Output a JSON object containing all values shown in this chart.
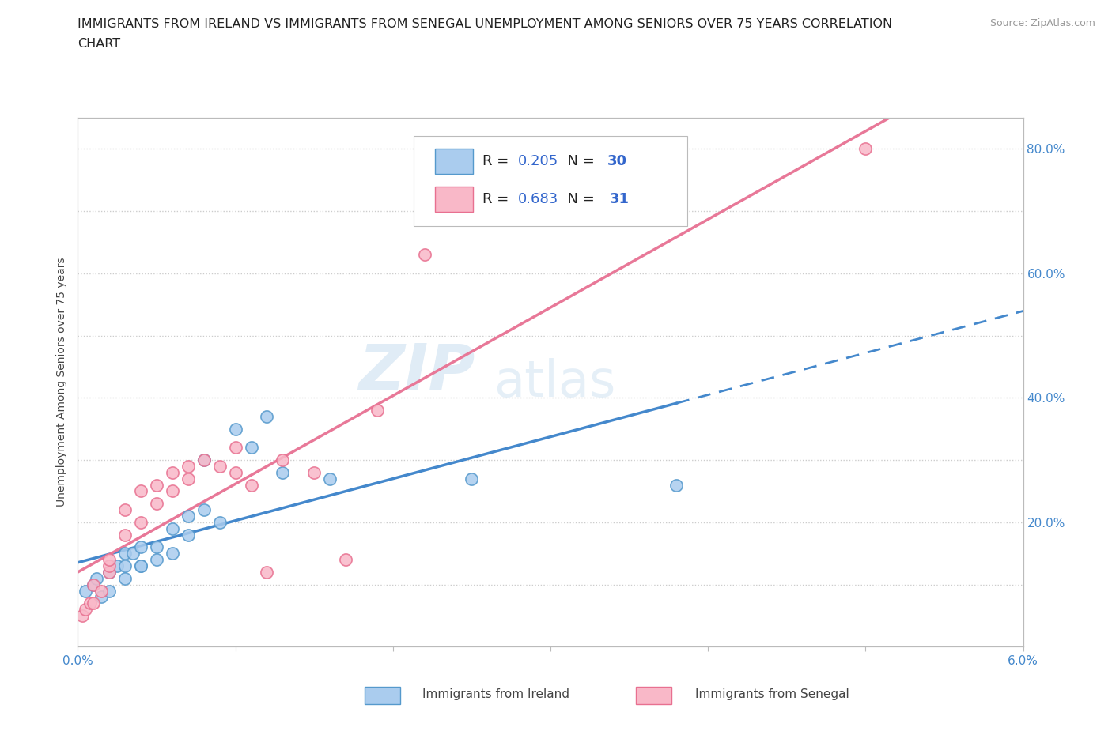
{
  "title_line1": "IMMIGRANTS FROM IRELAND VS IMMIGRANTS FROM SENEGAL UNEMPLOYMENT AMONG SENIORS OVER 75 YEARS CORRELATION",
  "title_line2": "CHART",
  "source": "Source: ZipAtlas.com",
  "ylabel": "Unemployment Among Seniors over 75 years",
  "xlim": [
    0.0,
    0.06
  ],
  "ylim": [
    0.0,
    0.85
  ],
  "xticks": [
    0.0,
    0.01,
    0.02,
    0.03,
    0.04,
    0.05,
    0.06
  ],
  "xticklabels": [
    "0.0%",
    "",
    "",
    "",
    "",
    "",
    "6.0%"
  ],
  "yticks": [
    0.0,
    0.1,
    0.2,
    0.3,
    0.4,
    0.5,
    0.6,
    0.7,
    0.8
  ],
  "yticklabels_right": [
    "",
    "",
    "20.0%",
    "",
    "40.0%",
    "",
    "60.0%",
    "",
    "80.0%"
  ],
  "ireland_color": "#aaccee",
  "ireland_edge_color": "#5599cc",
  "senegal_color": "#f9b8c8",
  "senegal_edge_color": "#e87090",
  "ireland_line_color": "#4488cc",
  "senegal_line_color": "#e87898",
  "R_ireland": 0.205,
  "N_ireland": 30,
  "R_senegal": 0.683,
  "N_senegal": 31,
  "watermark_zip": "ZIP",
  "watermark_atlas": "atlas",
  "background_color": "#ffffff",
  "grid_color": "#cccccc",
  "title_fontsize": 11.5,
  "tick_color": "#4488cc",
  "tick_fontsize": 11,
  "ireland_scatter_x": [
    0.0005,
    0.001,
    0.0012,
    0.0015,
    0.002,
    0.002,
    0.0025,
    0.003,
    0.003,
    0.003,
    0.0035,
    0.004,
    0.004,
    0.004,
    0.005,
    0.005,
    0.006,
    0.006,
    0.007,
    0.007,
    0.008,
    0.008,
    0.009,
    0.01,
    0.011,
    0.012,
    0.013,
    0.016,
    0.025,
    0.038
  ],
  "ireland_scatter_y": [
    0.09,
    0.1,
    0.11,
    0.08,
    0.12,
    0.09,
    0.13,
    0.13,
    0.15,
    0.11,
    0.15,
    0.13,
    0.13,
    0.16,
    0.16,
    0.14,
    0.19,
    0.15,
    0.21,
    0.18,
    0.22,
    0.3,
    0.2,
    0.35,
    0.32,
    0.37,
    0.28,
    0.27,
    0.27,
    0.26
  ],
  "senegal_scatter_x": [
    0.0003,
    0.0005,
    0.0008,
    0.001,
    0.001,
    0.0015,
    0.002,
    0.002,
    0.002,
    0.003,
    0.003,
    0.004,
    0.004,
    0.005,
    0.005,
    0.006,
    0.006,
    0.007,
    0.007,
    0.008,
    0.009,
    0.01,
    0.01,
    0.011,
    0.012,
    0.013,
    0.015,
    0.017,
    0.019,
    0.022,
    0.05
  ],
  "senegal_scatter_y": [
    0.05,
    0.06,
    0.07,
    0.07,
    0.1,
    0.09,
    0.12,
    0.13,
    0.14,
    0.18,
    0.22,
    0.2,
    0.25,
    0.23,
    0.26,
    0.25,
    0.28,
    0.29,
    0.27,
    0.3,
    0.29,
    0.32,
    0.28,
    0.26,
    0.12,
    0.3,
    0.28,
    0.14,
    0.38,
    0.63,
    0.8
  ]
}
